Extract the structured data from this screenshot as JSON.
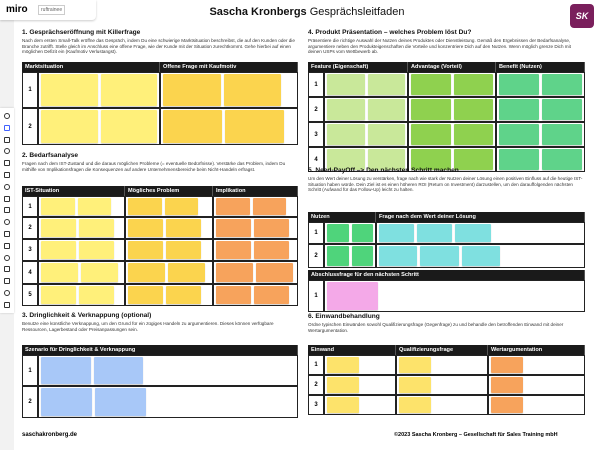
{
  "app": {
    "name": "miro",
    "board_name": "ruftrainee"
  },
  "header": {
    "title_bold": "Sascha Kronbergs",
    "title_rest": "Gesprächsleitfaden",
    "logo": "SK"
  },
  "sections": [
    {
      "title": "1. Gesprächseröffnung mit Killerfrage",
      "description": "Nach dem ersten Small-Talk eröffne das Gespräch, indem Du eine schwierige Marktsituation beschreibst, die auf den Kunden oder die Branche zutrifft. Stelle gleich im Anschluss eine offene Frage, wie der Kunde mit der Situation zurechtkommt. Gehe hierbei auf einen möglichen Defizit ein (Kaufmotiv Verlustangst).",
      "table": {
        "headers": [
          "Marktsituation",
          "Offene Frage mit Kaufmotiv"
        ],
        "rows": [
          1,
          2
        ]
      }
    },
    {
      "title": "2. Bedarfsanalyse",
      "description": "Fragen nach dem IST-Zustand und die daraus möglichen Probleme (= eventuelle Bedürfnisse). Verstärke das Problem, indem Du mithilfe von Implikationsfragen die Konsequenzen auf andere Unternehmensbereiche beim Nicht-Handeln erfragst.",
      "table": {
        "headers": [
          "IST-Situation",
          "Mögliches Problem",
          "Implikation"
        ],
        "rows": [
          1,
          2,
          3,
          4,
          5
        ]
      }
    },
    {
      "title": "3. Dringlichkeit & Verknappung (optional)",
      "description": "Benutze eine künstliche Verknappung, um den Grund für ein zügiges Handeln zu argumentieren. Dieses können verfügbare Ressourcen, Lagerbestand oder Preisanpassungen sein.",
      "table": {
        "headers": [
          "Szenario für Dringlichkeit & Verknappung"
        ],
        "rows": [
          1,
          2
        ]
      }
    },
    {
      "title": "4. Produkt Präsentation – welches Problem löst Du?",
      "description": "Präsentiere die richtige Auswahl der Nutzen deines Produktes oder Dienstleistung. Gemäß den Ergebnissen der Bedarfsanalyse, argumentiere neben den Produkteigenschaften die Vorteile und konzentriere Dich auf den Nutzen. Wenn möglich grenze Dich mit deinen USPs vom Wettbewerb ab.",
      "table": {
        "headers": [
          "Feature (Eigenschaft)",
          "Advantage (Vorteil)",
          "Benefit (Nutzen)"
        ],
        "rows": [
          1,
          2,
          3,
          4
        ]
      }
    },
    {
      "title": "5. Need-PayOff –> Den nächsten Schritt machen",
      "description": "Um den Wert deiner Lösung zu verstärken, frage nach wie stark der Nutzen deiner Lösung einen positiven Einfluss auf die heutige IST-Situation haben würde. Dein Ziel ist es einen höheren ROI (Return on Investment) darzustellen, um den darauffolgenden nächsten Schritt (Aufwand für das Follow-Up) leicht zu halten.",
      "table": {
        "headers": [
          "Nutzen",
          "Frage nach dem Wert deiner Lösung"
        ],
        "rows": [
          1,
          2
        ]
      },
      "closing": {
        "headers": [
          "Abschlussfrage für den nächsten Schritt"
        ],
        "rows": [
          1
        ]
      }
    },
    {
      "title": "6. Einwandbehandlung",
      "description": "Ordne typischen Einwänden sowohl Qualifizierungsfrage (Gegenfrage) zu und behandle den betroffenden Einwand mit deiner Wertargumentation.",
      "table": {
        "headers": [
          "Einwand",
          "Qualifizierungsfrage",
          "Wertargumentation"
        ],
        "rows": [
          1,
          2,
          3
        ]
      }
    }
  ],
  "footer": {
    "left": "saschakronberg.de",
    "right": "©2023 Sascha Kronberg – Gesellschaft für Sales Training mbH"
  }
}
